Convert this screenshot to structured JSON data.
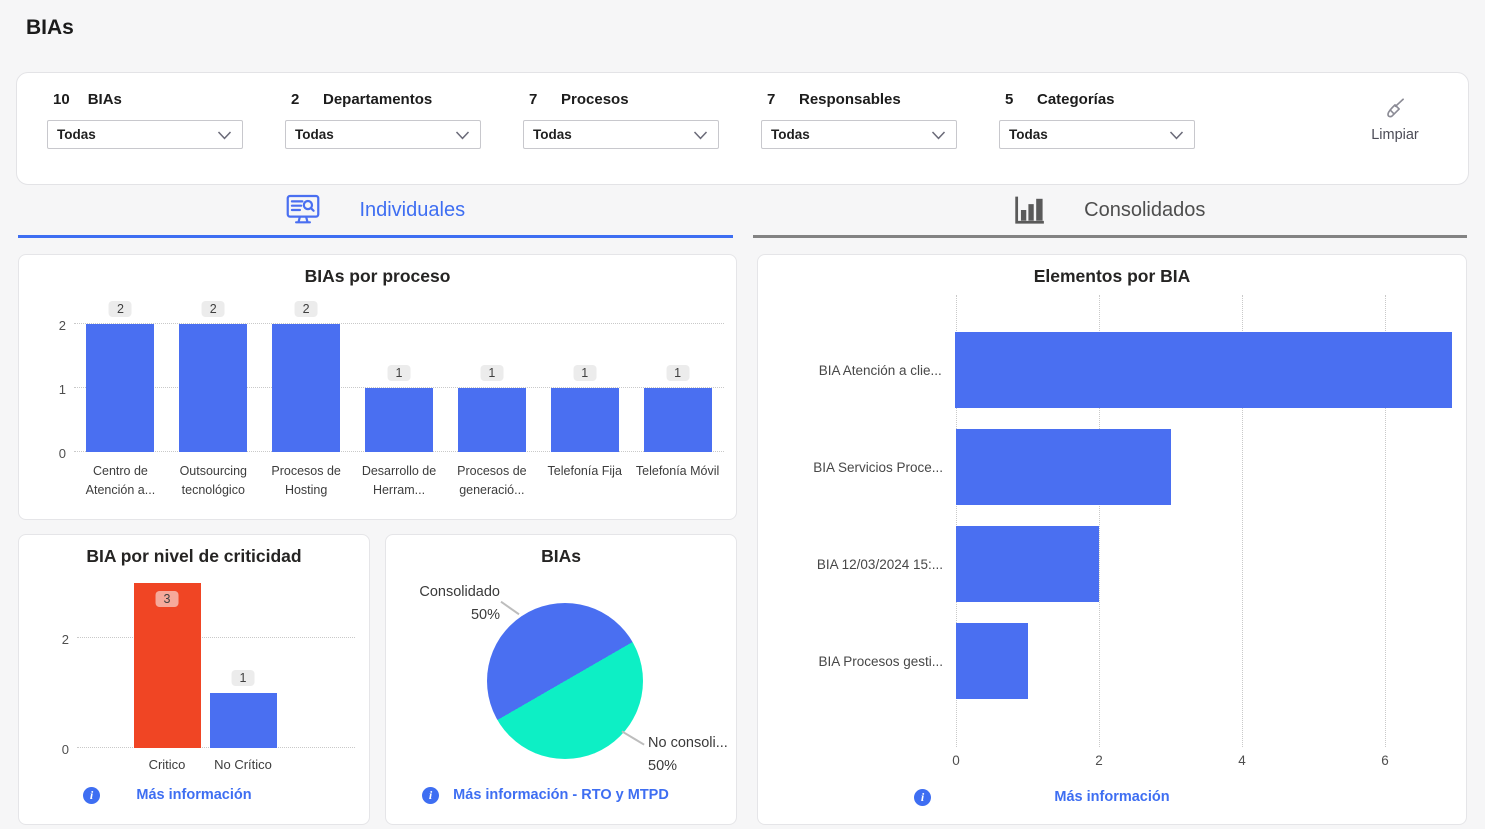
{
  "page": {
    "title": "BIAs"
  },
  "colors": {
    "accent_blue": "#4a6ff1",
    "link_blue": "#3e6ef2",
    "bar_red": "#f04524",
    "pie_teal": "#0defc5",
    "inactive_tab_gray": "#4e4e4e"
  },
  "filters": {
    "clear_label": "Limpiar",
    "clear_icon": "broom-icon",
    "dropdown_icon": "chevron-down-icon",
    "items": [
      {
        "count": "10",
        "label": "BIAs",
        "value": "Todas"
      },
      {
        "count": "2",
        "label": "Departamentos",
        "value": "Todas"
      },
      {
        "count": "7",
        "label": "Procesos",
        "value": "Todas"
      },
      {
        "count": "7",
        "label": "Responsables",
        "value": "Todas"
      },
      {
        "count": "5",
        "label": "Categorías",
        "value": "Todas"
      }
    ]
  },
  "tabs": [
    {
      "label": "Individuales",
      "icon": "monitor-search-icon",
      "active": true
    },
    {
      "label": "Consolidados",
      "icon": "bar-chart-icon",
      "active": false
    }
  ],
  "chart_data": [
    {
      "id": "bias_por_proceso",
      "type": "bar",
      "title": "BIAs por proceso",
      "categories": [
        "Centro de Atención a...",
        "Outsourcing tecnológico",
        "Procesos de Hosting",
        "Desarrollo de Herram...",
        "Procesos de generació...",
        "Telefonía Fija",
        "Telefonía Móvil"
      ],
      "values": [
        2,
        2,
        2,
        1,
        1,
        1,
        1
      ],
      "data_labels": [
        "2",
        "2",
        "2",
        "1",
        "1",
        "1",
        "1"
      ],
      "bar_color": "#4a6ff1",
      "ylim": [
        0,
        2
      ],
      "yticks": [
        0,
        1,
        2
      ],
      "grid": "dotted-horizontal"
    },
    {
      "id": "bia_por_nivel_de_criticidad",
      "type": "bar",
      "title": "BIA por nivel de criticidad",
      "categories": [
        "Critico",
        "No Crítico"
      ],
      "values": [
        3,
        1
      ],
      "data_labels": [
        "3",
        "1"
      ],
      "bar_colors": [
        "#f04524",
        "#4a6ff1"
      ],
      "ylim": [
        0,
        3
      ],
      "yticks": [
        0,
        2
      ],
      "grid": "dotted-horizontal",
      "footer_link": "Más información"
    },
    {
      "id": "bias_consolidado_pie",
      "type": "pie",
      "title": "BIAs",
      "slices": [
        {
          "label": "Consolidado",
          "pct_label": "50%",
          "value": 50,
          "color": "#4a6ff1"
        },
        {
          "label": "No consoli...",
          "pct_label": "50%",
          "value": 50,
          "color": "#0defc5"
        }
      ],
      "footer_link": "Más información - RTO y MTPD"
    },
    {
      "id": "elementos_por_bia",
      "type": "bar",
      "orientation": "horizontal",
      "title": "Elementos por BIA",
      "categories": [
        "BIA Atención a clie...",
        "BIA Servicios Proce...",
        "BIA 12/03/2024 15:...",
        "BIA Procesos gesti..."
      ],
      "values": [
        7,
        3,
        2,
        1
      ],
      "bar_color": "#4a6ff1",
      "xlim": [
        0,
        7
      ],
      "xticks": [
        0,
        2,
        4,
        6
      ],
      "grid": "dotted-vertical",
      "footer_link": "Más información"
    }
  ]
}
